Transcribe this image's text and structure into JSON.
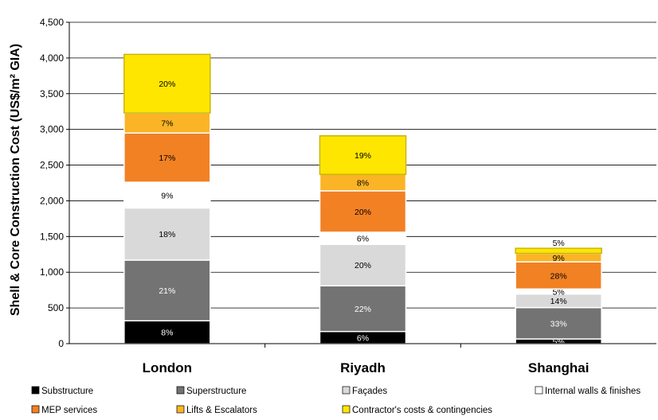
{
  "chart_data": {
    "type": "bar",
    "stacked": true,
    "ylabel": "Shell & Core Construction Cost (US$/m² GIA)",
    "ylim": [
      0,
      4500
    ],
    "yticks": [
      "0",
      "500",
      "1,000",
      "1,500",
      "2,000",
      "2,500",
      "3,000",
      "3,500",
      "4,000",
      "4,500"
    ],
    "ytick_values": [
      0,
      500,
      1000,
      1500,
      2000,
      2500,
      3000,
      3500,
      4000,
      4500
    ],
    "grid": true,
    "legend_position": "bottom",
    "categories": [
      "London",
      "Riyadh",
      "Shanghai"
    ],
    "series": [
      {
        "name": "Substructure",
        "color": "#000000",
        "values": [
          320,
          170,
          65
        ],
        "labels": [
          "8%",
          "6%",
          "5%"
        ],
        "label_color": "#ffffff"
      },
      {
        "name": "Superstructure",
        "color": "#737373",
        "values": [
          850,
          640,
          440
        ],
        "labels": [
          "21%",
          "22%",
          "33%"
        ],
        "label_color": "#ffffff"
      },
      {
        "name": "Façades",
        "color": "#d9d9d9",
        "values": [
          730,
          580,
          190
        ],
        "labels": [
          "18%",
          "20%",
          "14%"
        ],
        "label_color": "#000000"
      },
      {
        "name": "Internal walls & finishes",
        "color": "#ffffff",
        "values": [
          360,
          170,
          70
        ],
        "labels": [
          "9%",
          "6%",
          "5%"
        ],
        "label_color": "#000000"
      },
      {
        "name": "MEP services",
        "color": "#f28124",
        "values": [
          690,
          580,
          380
        ],
        "labels": [
          "17%",
          "20%",
          "28%"
        ],
        "label_color": "#000000"
      },
      {
        "name": "Lifts & Escalators",
        "color": "#fbb426",
        "values": [
          280,
          230,
          120
        ],
        "labels": [
          "7%",
          "8%",
          "9%"
        ],
        "label_color": "#000000"
      },
      {
        "name": "Contractor's costs & contingencies",
        "color": "#ffe600",
        "values": [
          820,
          540,
          70
        ],
        "labels": [
          "20%",
          "19%",
          "5%"
        ],
        "label_color": "#000000"
      }
    ]
  }
}
